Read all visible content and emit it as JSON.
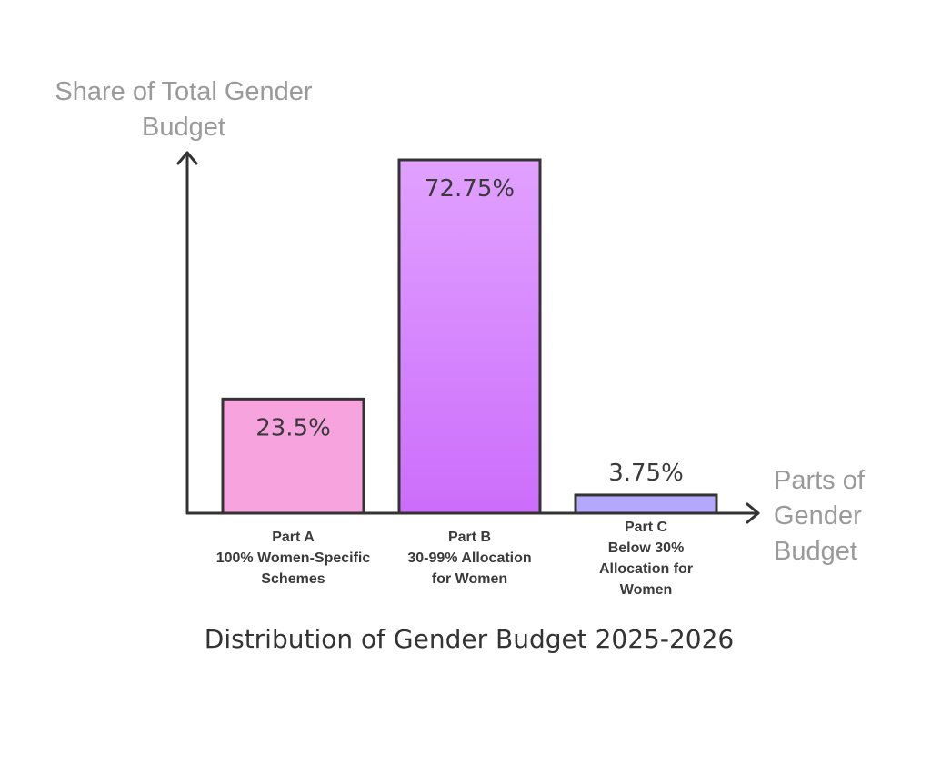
{
  "chart_data": {
    "type": "bar",
    "title": "Distribution of Gender Budget 2025-2026",
    "ylabel": "Share of Total Gender Budget",
    "xlabel": "Parts of Gender Budget",
    "ylabel_lines": [
      "Share of Total Gender",
      "Budget"
    ],
    "xlabel_lines": [
      "Parts of",
      "Gender",
      "Budget"
    ],
    "categories": [
      "Part A 100% Women-Specific Schemes",
      "Part B 30-99% Allocation for Women",
      "Part C Below 30% Allocation for Women"
    ],
    "category_lines": [
      [
        "Part A",
        "100% Women-Specific",
        "Schemes"
      ],
      [
        "Part B",
        "30-99% Allocation",
        "for Women"
      ],
      [
        "Part C",
        "Below 30%",
        "Allocation for",
        "Women"
      ]
    ],
    "values": [
      23.5,
      72.75,
      3.75
    ],
    "value_labels": [
      "23.5%",
      "72.75%",
      "3.75%"
    ],
    "ylim": [
      0,
      72.75
    ],
    "grid": false,
    "bar_colors": [
      [
        "#f7a3dd",
        "#f7a3dd"
      ],
      [
        "#e1a1ff",
        "#cc6dfb"
      ],
      [
        "#b3a8fb",
        "#b3a8fb"
      ]
    ]
  }
}
